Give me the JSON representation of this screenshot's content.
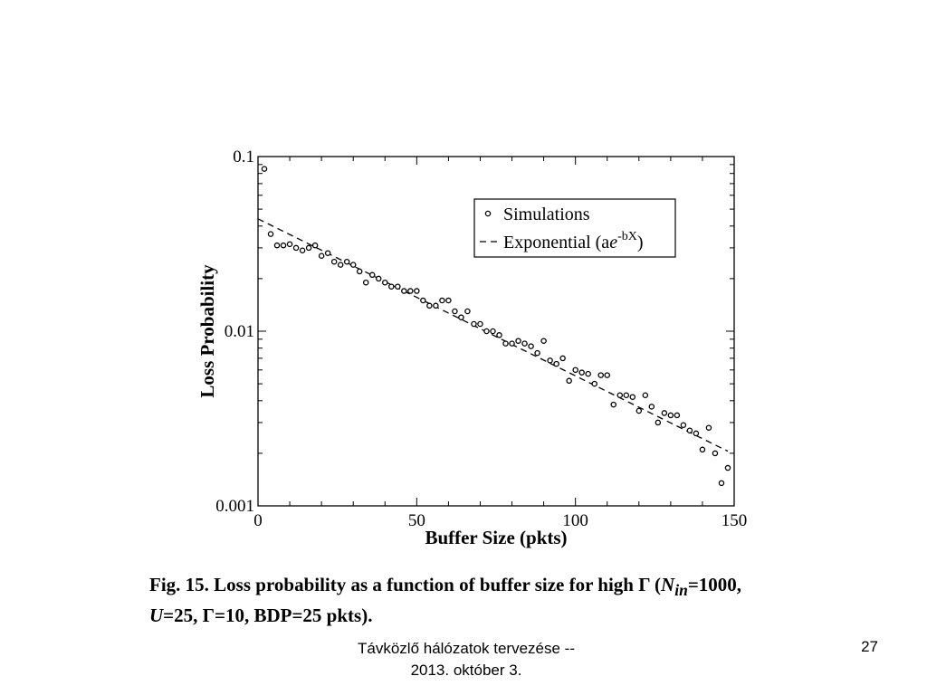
{
  "chart_data": {
    "type": "scatter",
    "xlabel": "Buffer Size (pkts)",
    "ylabel": "Loss Probability",
    "xlim": [
      0,
      150
    ],
    "ylim": [
      0.001,
      0.1
    ],
    "yscale": "log",
    "grid": false,
    "legend_position": "top-right",
    "x_ticks": [
      "0",
      "50",
      "100",
      "150"
    ],
    "y_ticks": [
      "0.001",
      "0.01",
      "0.1"
    ],
    "series": [
      {
        "name": "Simulations",
        "marker": "circle",
        "points": [
          [
            2,
            0.085
          ],
          [
            4,
            0.036
          ],
          [
            6,
            0.031
          ],
          [
            8,
            0.031
          ],
          [
            10,
            0.0315
          ],
          [
            12,
            0.03
          ],
          [
            14,
            0.029
          ],
          [
            16,
            0.03
          ],
          [
            18,
            0.031
          ],
          [
            20,
            0.027
          ],
          [
            22,
            0.028
          ],
          [
            24,
            0.025
          ],
          [
            26,
            0.024
          ],
          [
            28,
            0.025
          ],
          [
            30,
            0.024
          ],
          [
            32,
            0.022
          ],
          [
            34,
            0.019
          ],
          [
            36,
            0.021
          ],
          [
            38,
            0.02
          ],
          [
            40,
            0.019
          ],
          [
            42,
            0.018
          ],
          [
            44,
            0.018
          ],
          [
            46,
            0.017
          ],
          [
            48,
            0.017
          ],
          [
            50,
            0.017
          ],
          [
            52,
            0.015
          ],
          [
            54,
            0.014
          ],
          [
            56,
            0.014
          ],
          [
            58,
            0.015
          ],
          [
            60,
            0.015
          ],
          [
            62,
            0.013
          ],
          [
            64,
            0.012
          ],
          [
            66,
            0.013
          ],
          [
            68,
            0.011
          ],
          [
            70,
            0.011
          ],
          [
            72,
            0.01
          ],
          [
            74,
            0.01
          ],
          [
            76,
            0.0095
          ],
          [
            78,
            0.0085
          ],
          [
            80,
            0.0085
          ],
          [
            82,
            0.0088
          ],
          [
            84,
            0.0085
          ],
          [
            86,
            0.0082
          ],
          [
            88,
            0.0075
          ],
          [
            90,
            0.0088
          ],
          [
            92,
            0.0068
          ],
          [
            94,
            0.0065
          ],
          [
            96,
            0.007
          ],
          [
            98,
            0.0052
          ],
          [
            100,
            0.006
          ],
          [
            102,
            0.0058
          ],
          [
            104,
            0.0057
          ],
          [
            106,
            0.005
          ],
          [
            108,
            0.0056
          ],
          [
            110,
            0.0056
          ],
          [
            112,
            0.0038
          ],
          [
            114,
            0.0043
          ],
          [
            116,
            0.0043
          ],
          [
            118,
            0.0042
          ],
          [
            120,
            0.0035
          ],
          [
            122,
            0.0043
          ],
          [
            124,
            0.0037
          ],
          [
            126,
            0.003
          ],
          [
            128,
            0.0034
          ],
          [
            130,
            0.0033
          ],
          [
            132,
            0.0033
          ],
          [
            134,
            0.0029
          ],
          [
            136,
            0.0027
          ],
          [
            138,
            0.0026
          ],
          [
            140,
            0.0021
          ],
          [
            142,
            0.0028
          ],
          [
            144,
            0.002
          ],
          [
            146,
            0.00135
          ],
          [
            148,
            0.00165
          ]
        ]
      },
      {
        "name": "Exponential",
        "legend_label_parts": [
          "Exponential (a",
          "e",
          "-bX",
          ")"
        ],
        "style": "dashed",
        "a": 0.044,
        "b": 0.0207,
        "x_range": [
          0,
          148
        ]
      }
    ]
  },
  "caption": {
    "line1_a": "Fig. 15.   Loss probability as a function of buffer size for high Γ (",
    "line1_n": "N",
    "line1_sub": "in",
    "line1_b": "=1000,",
    "line2_u": "U",
    "line2_rest": "=25, Γ=10, BDP=25 pkts)."
  },
  "footer": {
    "title_line1": "Távközlő hálózatok tervezése --",
    "title_line2": "2013. október 3.",
    "page_number": "27"
  }
}
